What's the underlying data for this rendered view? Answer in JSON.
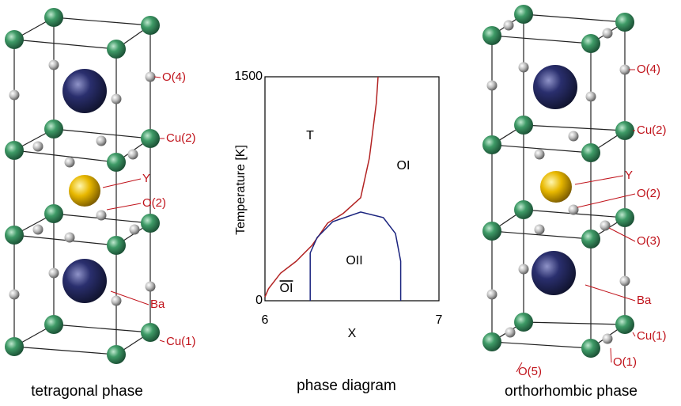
{
  "tetragonal": {
    "caption": "tetragonal phase",
    "labels": [
      "O(4)",
      "Cu(2)",
      "Y",
      "O(2)",
      "Ba",
      "Cu(1)"
    ]
  },
  "orthorhombic": {
    "caption": "orthorhombic phase",
    "labels": [
      "O(4)",
      "Cu(2)",
      "Y",
      "O(2)",
      "O(3)",
      "Ba",
      "Cu(1)",
      "O(1)",
      "O(5)"
    ]
  },
  "chart_data": {
    "type": "line",
    "caption": "phase diagram",
    "x_label": "X",
    "y_label": "Temperature [K]",
    "xlim": [
      6,
      7
    ],
    "ylim": [
      0,
      1500
    ],
    "xticks": [
      6,
      7
    ],
    "yticks": [
      0,
      1500
    ],
    "annotations": [
      "T",
      "OI",
      "OII",
      "OI"
    ],
    "series": [
      {
        "color": "#b22222",
        "x": [
          6.0,
          6.02,
          6.09,
          6.18,
          6.27,
          6.36,
          6.45,
          6.55,
          6.6,
          6.64,
          6.65
        ],
        "values": [
          25,
          80,
          185,
          265,
          370,
          520,
          585,
          690,
          955,
          1325,
          1500
        ]
      },
      {
        "color": "#1a237e",
        "x": [
          6.26,
          6.26,
          6.3,
          6.39,
          6.55,
          6.68,
          6.75,
          6.78,
          6.78
        ],
        "values": [
          0,
          320,
          424,
          530,
          594,
          557,
          450,
          265,
          0
        ]
      }
    ]
  }
}
